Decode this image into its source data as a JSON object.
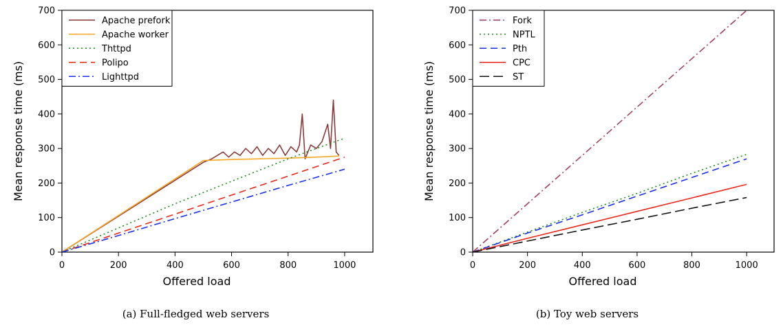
{
  "captions": [
    "(a) Full-fledged web servers",
    "(b) Toy web servers"
  ],
  "chart_data": [
    {
      "type": "line",
      "title": "",
      "xlabel": "Offered load",
      "ylabel": "Mean response time (ms)",
      "xlim": [
        0,
        1100
      ],
      "ylim": [
        0,
        700
      ],
      "xticks": [
        0,
        200,
        400,
        600,
        800,
        1000
      ],
      "yticks": [
        0,
        100,
        200,
        300,
        400,
        500,
        600,
        700
      ],
      "legend_position": "top-left",
      "series": [
        {
          "name": "Apache prefork",
          "color": "#8b3a3a",
          "dash": "solid",
          "x": [
            0,
            500,
            530,
            550,
            570,
            590,
            610,
            630,
            650,
            670,
            690,
            710,
            730,
            750,
            770,
            790,
            810,
            830,
            840,
            850,
            860,
            880,
            900,
            920,
            940,
            950,
            960,
            970,
            980
          ],
          "y": [
            0,
            260,
            270,
            280,
            290,
            275,
            290,
            280,
            300,
            285,
            305,
            280,
            300,
            285,
            310,
            280,
            305,
            290,
            310,
            400,
            270,
            310,
            300,
            320,
            370,
            300,
            440,
            290,
            280
          ]
        },
        {
          "name": "Apache worker",
          "color": "#f5a623",
          "dash": "solid",
          "x": [
            0,
            500,
            600,
            700,
            800,
            900,
            980
          ],
          "y": [
            0,
            265,
            268,
            270,
            272,
            275,
            278
          ]
        },
        {
          "name": "Thttpd",
          "color": "#1a8a1a",
          "dash": "dotted",
          "x": [
            0,
            200,
            400,
            600,
            800,
            1000
          ],
          "y": [
            0,
            70,
            140,
            205,
            270,
            330
          ]
        },
        {
          "name": "Polipo",
          "color": "#e8271b",
          "dash": "dashed",
          "x": [
            0,
            200,
            400,
            600,
            800,
            1000
          ],
          "y": [
            0,
            55,
            110,
            165,
            220,
            275
          ]
        },
        {
          "name": "Lighttpd",
          "color": "#1a2de8",
          "dash": "dashdot",
          "x": [
            0,
            200,
            400,
            600,
            800,
            1000
          ],
          "y": [
            0,
            48,
            97,
            145,
            193,
            240
          ]
        }
      ]
    },
    {
      "type": "line",
      "title": "",
      "xlabel": "Offered load",
      "ylabel": "Mean response time (ms)",
      "xlim": [
        0,
        1100
      ],
      "ylim": [
        0,
        700
      ],
      "xticks": [
        0,
        200,
        400,
        600,
        800,
        1000
      ],
      "yticks": [
        0,
        100,
        200,
        300,
        400,
        500,
        600,
        700
      ],
      "legend_position": "top-left",
      "series": [
        {
          "name": "Fork",
          "color": "#a0405a",
          "dash": "dashdot",
          "x": [
            0,
            1000
          ],
          "y": [
            0,
            700
          ]
        },
        {
          "name": "NPTL",
          "color": "#1a8a1a",
          "dash": "dotted",
          "x": [
            0,
            200,
            400,
            600,
            800,
            1000
          ],
          "y": [
            0,
            58,
            115,
            170,
            228,
            283
          ]
        },
        {
          "name": "Pth",
          "color": "#1a2de8",
          "dash": "dashed",
          "x": [
            0,
            200,
            400,
            600,
            800,
            1000
          ],
          "y": [
            0,
            55,
            108,
            162,
            216,
            270
          ]
        },
        {
          "name": "CPC",
          "color": "#e8271b",
          "dash": "solid",
          "x": [
            0,
            200,
            400,
            600,
            800,
            1000
          ],
          "y": [
            0,
            40,
            79,
            118,
            157,
            196
          ]
        },
        {
          "name": "ST",
          "color": "#111111",
          "dash": "longdash",
          "x": [
            0,
            200,
            400,
            600,
            800,
            1000
          ],
          "y": [
            0,
            32,
            64,
            95,
            127,
            158
          ]
        }
      ]
    }
  ]
}
